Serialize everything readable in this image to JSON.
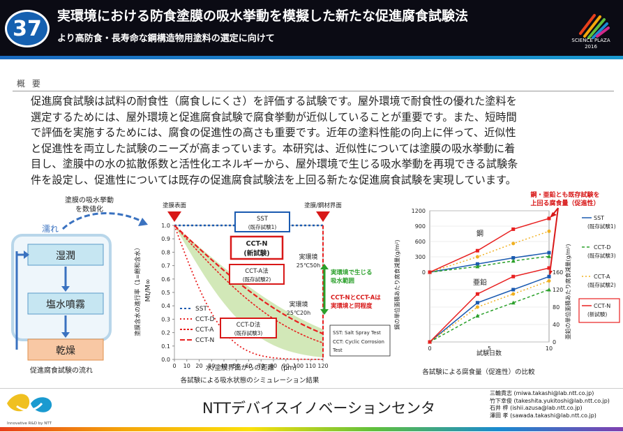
{
  "header": {
    "number": "37",
    "title": "実環境における防食塗膜の吸水挙動を模擬した新たな促進腐食試験法",
    "subtitle": "より高防食・長寿命な鋼構造物用塗料の選定に向けて",
    "logo_line1": "SCIENCE PLAZA",
    "logo_line2": "2016",
    "colors": {
      "background": "#0b0b14",
      "circle": "#1560b0"
    }
  },
  "summary": {
    "label": "概 要",
    "lines": [
      "促進腐食試験は試料の耐食性（腐食しにくさ）を評価する試験です。屋外環境で耐食性の優れた塗料を",
      "選定するためには、屋外環境と促進腐食試験で腐食挙動が近似していることが重要です。また、短時間",
      "で評価を実施するためには、腐食の促進性の高さも重要です。近年の塗料性能の向上に伴って、近似性",
      "と促進性を両立した試験のニーズが高まっています。本研究は、近似性については塗膜の吸水挙動に着",
      "目し、塗膜中の水の拡散係数と活性化エネルギーから、屋外環境で生じる吸水挙動を再現できる試験条",
      "件を設定し、促進性については既存の促進腐食試験法を上回る新たな促進腐食試験を実現しています。"
    ]
  },
  "flow": {
    "label_numeric_1": "塗膜の吸水挙動",
    "label_numeric_2": "を数値化",
    "wet_label": "濡れ",
    "steps": [
      "湿潤",
      "塩水噴霧",
      "乾燥"
    ],
    "caption": "促進腐食試験の流れ"
  },
  "sim_chart": {
    "top_left_label": "塗膜表面",
    "top_right_label": "塗膜/鋼材界面",
    "y_axis_label": "塗膜含水の進行率（1=飽和含水）",
    "y_axis_symbol": "Mt/M∞",
    "x_axis_label": "水/塗膜界面からの距離　(μm)",
    "caption": "各試験による吸水状態のシミュレーション結果",
    "y_ticks": [
      "1.0",
      "0.9",
      "0.8",
      "0.7",
      "0.6",
      "0.5",
      "0.4",
      "0.3",
      "0.2",
      "0.1",
      "0.0"
    ],
    "x_ticks": [
      "0",
      "10",
      "20",
      "30",
      "40",
      "50",
      "60",
      "70",
      "80",
      "90",
      "100",
      "110",
      "120"
    ],
    "legend": [
      "SST",
      "CCT-D",
      "CCT-A",
      "CCT-N"
    ],
    "box_sst_1": "SST",
    "box_sst_2": "(既存試験1)",
    "box_cctn_1": "CCT-N",
    "box_cctn_2": "(新試験)",
    "box_ccta_1": "CCT-A法",
    "box_ccta_2": "(既存試験2)",
    "box_cctd_1": "CCT-D法",
    "box_cctd_2": "(既存試験3)",
    "env1_1": "実環境",
    "env1_2": "25℃50h",
    "env2_1": "実環境",
    "env2_2": "25℃20h",
    "range_1": "実環境で生じる",
    "range_2": "吸水範囲",
    "note_1": "CCT-NとCCT-Aは",
    "note_2": "実環境と同程度",
    "abbrev_1": "SST: Salt Spray Test",
    "abbrev_2": "CCT: Cyclic Corrosion",
    "abbrev_3": "Test"
  },
  "corrosion_chart": {
    "callout_1": "鋼・亜鉛とも既存試験を",
    "callout_2": "上回る腐食量（促進性）",
    "steel_label": "鋼",
    "zinc_label": "亜鉛",
    "y_left_label": "鋼の単位面積あたり腐食減量(g/m²)",
    "y_right_label": "亜鉛の単位面積あたり腐食減量(g/m²)",
    "x_axis_label": "試験日数",
    "caption": "各試験による腐食量（促進性）の比較",
    "y_left_ticks": [
      "1200",
      "900",
      "600",
      "300",
      "0"
    ],
    "y_right_ticks": [
      "160",
      "120",
      "80",
      "40",
      "0"
    ],
    "x_ticks": [
      "0",
      "5",
      "10"
    ],
    "legend": [
      {
        "name": "SST",
        "note": "(既存試験1)"
      },
      {
        "name": "CCT-D",
        "note": "(既存試験3)"
      },
      {
        "name": "CCT-A",
        "note": "(既存試験2)"
      },
      {
        "name": "CCT-N",
        "note": "(新試験)"
      }
    ]
  },
  "footer": {
    "logo_text": "Innovative R&D by NTT",
    "org": "NTTデバイスイノベーションセンタ",
    "contacts": [
      "三輪貴志 (miwa.takashi@lab.ntt.co.jp)",
      "竹下幸俊 (takeshita.yukitoshi@lab.ntt.co.jp)",
      "石井 梓 (ishii.azusa@lab.ntt.co.jp)",
      "澤田 孝 (sawada.takashi@lab.ntt.co.jp)"
    ]
  }
}
